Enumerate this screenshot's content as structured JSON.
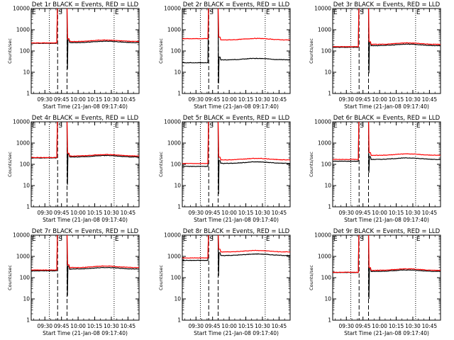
{
  "chart_data": [
    {
      "type": "line",
      "title": "Det 1r BLACK = Events, RED = LLD",
      "xlabel": "Start Time (21-Jan-08 09:17:40)",
      "ylabel": "Counts/sec",
      "yscale": "log",
      "ylim": [
        1,
        10000
      ],
      "xlim": [
        "09:17:40",
        "10:55:00"
      ],
      "x_ticks": [
        "09:30",
        "09:45",
        "10:00",
        "10:15",
        "10:30",
        "10:45"
      ],
      "y_ticks": [
        "1",
        "10",
        "100",
        "1000",
        "10000"
      ],
      "flags": [
        "E",
        "S",
        "E"
      ],
      "series": [
        {
          "color": "#000000",
          "base": 230,
          "dipmin": 14,
          "hump": 290
        },
        {
          "color": "#ff0000",
          "base": 240,
          "dipmin": null,
          "hump": 330
        }
      ]
    },
    {
      "type": "line",
      "title": "Det 2r BLACK = Events, RED = LLD",
      "xlabel": "Start Time (21-Jan-08 09:17:40)",
      "ylabel": "Counts/sec",
      "yscale": "log",
      "ylim": [
        1,
        10000
      ],
      "xlim": [
        "09:17:40",
        "10:55:00"
      ],
      "x_ticks": [
        "09:30",
        "09:45",
        "10:00",
        "10:15",
        "10:30",
        "10:45"
      ],
      "y_ticks": [
        "1",
        "10",
        "100",
        "1000",
        "10000"
      ],
      "flags": [
        "E",
        "S",
        "E"
      ],
      "series": [
        {
          "color": "#000000",
          "base": 28,
          "dipmin": 3,
          "hump": 45
        },
        {
          "color": "#ff0000",
          "base": 380,
          "dipmin": null,
          "hump": 390
        }
      ]
    },
    {
      "type": "line",
      "title": "Det 3r BLACK = Events, RED = LLD",
      "xlabel": "Start Time (21-Jan-08 09:17:40)",
      "ylabel": "Counts/sec",
      "yscale": "log",
      "ylim": [
        1,
        10000
      ],
      "xlim": [
        "09:17:40",
        "10:55:00"
      ],
      "x_ticks": [
        "09:30",
        "09:45",
        "10:00",
        "10:15",
        "10:30",
        "10:45"
      ],
      "y_ticks": [
        "1",
        "10",
        "100",
        "1000",
        "10000"
      ],
      "flags": [
        "E",
        "S",
        "E"
      ],
      "series": [
        {
          "color": "#000000",
          "base": 150,
          "dipmin": 9,
          "hump": 210
        },
        {
          "color": "#ff0000",
          "base": 160,
          "dipmin": null,
          "hump": 240
        }
      ]
    },
    {
      "type": "line",
      "title": "Det 4r BLACK = Events, RED = LLD",
      "xlabel": "Start Time (21-Jan-08 09:17:40)",
      "ylabel": "Counts/sec",
      "yscale": "log",
      "ylim": [
        1,
        10000
      ],
      "xlim": [
        "09:17:40",
        "10:55:00"
      ],
      "x_ticks": [
        "09:30",
        "09:45",
        "10:00",
        "10:15",
        "10:30",
        "10:45"
      ],
      "y_ticks": [
        "1",
        "10",
        "100",
        "1000",
        "10000"
      ],
      "flags": [
        "E",
        "S",
        "E"
      ],
      "series": [
        {
          "color": "#000000",
          "base": 200,
          "dipmin": 11,
          "hump": 260
        },
        {
          "color": "#ff0000",
          "base": 210,
          "dipmin": null,
          "hump": 290
        }
      ]
    },
    {
      "type": "line",
      "title": "Det 5r BLACK = Events, RED = LLD",
      "xlabel": "Start Time (21-Jan-08 09:17:40)",
      "ylabel": "Counts/sec",
      "yscale": "log",
      "ylim": [
        1,
        10000
      ],
      "xlim": [
        "09:17:40",
        "10:55:00"
      ],
      "x_ticks": [
        "09:30",
        "09:45",
        "10:00",
        "10:15",
        "10:30",
        "10:45"
      ],
      "y_ticks": [
        "1",
        "10",
        "100",
        "1000",
        "10000"
      ],
      "flags": [
        "E",
        "S",
        "E"
      ],
      "series": [
        {
          "color": "#000000",
          "base": 80,
          "dipmin": 4,
          "hump": 130
        },
        {
          "color": "#ff0000",
          "base": 110,
          "dipmin": null,
          "hump": 190
        }
      ]
    },
    {
      "type": "line",
      "title": "Det 6r BLACK = Events, RED = LLD",
      "xlabel": "Start Time (21-Jan-08 09:17:40)",
      "ylabel": "Counts/sec",
      "yscale": "log",
      "ylim": [
        1,
        10000
      ],
      "xlim": [
        "09:17:40",
        "10:55:00"
      ],
      "x_ticks": [
        "09:30",
        "09:45",
        "10:00",
        "10:15",
        "10:30",
        "10:45"
      ],
      "y_ticks": [
        "1",
        "10",
        "100",
        "1000",
        "10000"
      ],
      "flags": [
        "E",
        "S",
        "E"
      ],
      "series": [
        {
          "color": "#000000",
          "base": 140,
          "dipmin": 40,
          "hump": 200
        },
        {
          "color": "#ff0000",
          "base": 170,
          "dipmin": null,
          "hump": 310
        }
      ]
    },
    {
      "type": "line",
      "title": "Det 7r BLACK = Events, RED = LLD",
      "xlabel": "Start Time (21-Jan-08 09:17:40)",
      "ylabel": "Counts/sec",
      "yscale": "log",
      "ylim": [
        1,
        10000
      ],
      "xlim": [
        "09:17:40",
        "10:55:00"
      ],
      "x_ticks": [
        "09:30",
        "09:45",
        "10:00",
        "10:15",
        "10:30",
        "10:45"
      ],
      "y_ticks": [
        "1",
        "10",
        "100",
        "1000",
        "10000"
      ],
      "flags": [
        "E",
        "S",
        "E"
      ],
      "series": [
        {
          "color": "#000000",
          "base": 210,
          "dipmin": 14,
          "hump": 300
        },
        {
          "color": "#ff0000",
          "base": 230,
          "dipmin": null,
          "hump": 350
        }
      ]
    },
    {
      "type": "line",
      "title": "Det 8r BLACK = Events, RED = LLD",
      "xlabel": "Start Time (21-Jan-08 09:17:40)",
      "ylabel": "Counts/sec",
      "yscale": "log",
      "ylim": [
        1,
        10000
      ],
      "xlim": [
        "09:17:40",
        "10:55:00"
      ],
      "x_ticks": [
        "09:30",
        "09:45",
        "10:00",
        "10:15",
        "10:30",
        "10:45"
      ],
      "y_ticks": [
        "1",
        "10",
        "100",
        "1000",
        "10000"
      ],
      "flags": [
        "E",
        "S",
        "E"
      ],
      "series": [
        {
          "color": "#000000",
          "base": 650,
          "dipmin": 120,
          "hump": 1300
        },
        {
          "color": "#ff0000",
          "base": 850,
          "dipmin": null,
          "hump": 1900
        }
      ]
    },
    {
      "type": "line",
      "title": "Det 9r BLACK = Events, RED = LLD",
      "xlabel": "Start Time (21-Jan-08 09:17:40)",
      "ylabel": "Counts/sec",
      "yscale": "log",
      "ylim": [
        1,
        10000
      ],
      "xlim": [
        "09:17:40",
        "10:55:00"
      ],
      "x_ticks": [
        "09:30",
        "09:45",
        "10:00",
        "10:15",
        "10:30",
        "10:45"
      ],
      "y_ticks": [
        "1",
        "10",
        "100",
        "1000",
        "10000"
      ],
      "flags": [
        "E",
        "S",
        "E"
      ],
      "series": [
        {
          "color": "#000000",
          "base": 175,
          "dipmin": 10,
          "hump": 230
        },
        {
          "color": "#ff0000",
          "base": 180,
          "dipmin": null,
          "hump": 260
        }
      ]
    }
  ]
}
